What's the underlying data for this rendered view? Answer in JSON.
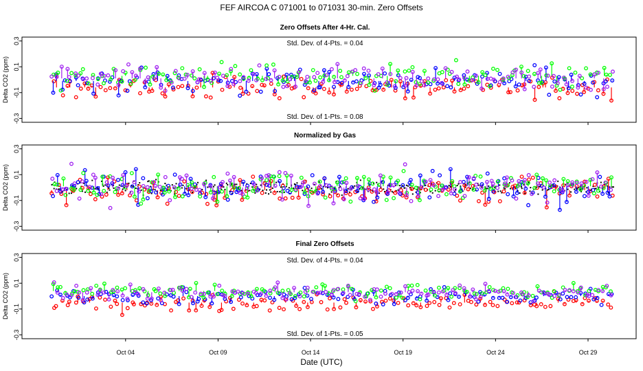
{
  "figure": {
    "title": "FEF   AIRCOA C   071001 to 071031   30-min. Zero Offsets",
    "xlabel": "Date (UTC)"
  },
  "chart_data": {
    "type": "scatter",
    "x_domain_days": [
      -1.6,
      31.6
    ],
    "x_ticks": [
      {
        "day": 4,
        "label": "Oct 04"
      },
      {
        "day": 9,
        "label": "Oct 09"
      },
      {
        "day": 14,
        "label": "Oct 14"
      },
      {
        "day": 19,
        "label": "Oct 19"
      },
      {
        "day": 24,
        "label": "Oct 24"
      },
      {
        "day": 29,
        "label": "Oct 29"
      }
    ],
    "series_colors": {
      "red": "#ff0000",
      "green": "#00ff00",
      "blue": "#0000ff",
      "purple": "#a020f0",
      "black": "#000000"
    },
    "panels": [
      {
        "title": "Zero Offsets After 4-Hr. Cal.",
        "ylabel": "Delta CO2 (ppm)",
        "ylim": [
          -0.33,
          0.33
        ],
        "yticks": [
          "0.3",
          "0.1",
          "-0.1",
          "-0.3"
        ],
        "ytick_values": [
          0.3,
          0.1,
          -0.1,
          -0.3
        ],
        "stat_top": "Std. Dev. of 4-Pts. =  0.04",
        "stat_bottom": "Std. Dev. of 1-Pts. =  0.08",
        "series": [
          {
            "name": "red",
            "mean": -0.06,
            "spread": 0.045
          },
          {
            "name": "blue",
            "mean": -0.01,
            "spread": 0.05
          },
          {
            "name": "green",
            "mean": 0.03,
            "spread": 0.05
          },
          {
            "name": "purple",
            "mean": 0.01,
            "spread": 0.05
          }
        ]
      },
      {
        "title": "Normalized by Gas",
        "ylabel": "Delta CO2 (ppm)",
        "ylim": [
          -0.33,
          0.33
        ],
        "yticks": [
          "0.3",
          "0.1",
          "-0.1",
          "-0.3"
        ],
        "ytick_values": [
          0.3,
          0.1,
          -0.1,
          -0.3
        ],
        "stat_top": "",
        "stat_bottom": "",
        "series": [
          {
            "name": "black",
            "mean": 0.0,
            "spread": 0.025
          },
          {
            "name": "red",
            "mean": -0.02,
            "spread": 0.055
          },
          {
            "name": "blue",
            "mean": 0.01,
            "spread": 0.06
          },
          {
            "name": "green",
            "mean": 0.01,
            "spread": 0.06
          },
          {
            "name": "purple",
            "mean": 0.0,
            "spread": 0.06
          }
        ]
      },
      {
        "title": "Final Zero Offsets",
        "ylabel": "Delta CO2 (ppm)",
        "ylim": [
          -0.33,
          0.33
        ],
        "yticks": [
          "0.3",
          "0.1",
          "-0.1",
          "-0.3"
        ],
        "ytick_values": [
          0.3,
          0.1,
          -0.1,
          -0.3
        ],
        "stat_top": "Std. Dev. of 4-Pts. =  0.04",
        "stat_bottom": "Std. Dev. of 1-Pts. =  0.05",
        "series": [
          {
            "name": "red",
            "mean": -0.05,
            "spread": 0.03
          },
          {
            "name": "blue",
            "mean": 0.0,
            "spread": 0.03
          },
          {
            "name": "green",
            "mean": 0.04,
            "spread": 0.03
          },
          {
            "name": "purple",
            "mean": 0.03,
            "spread": 0.03
          }
        ]
      }
    ],
    "time_range_days": [
      0.0,
      30.4
    ],
    "points_per_series": 130
  }
}
